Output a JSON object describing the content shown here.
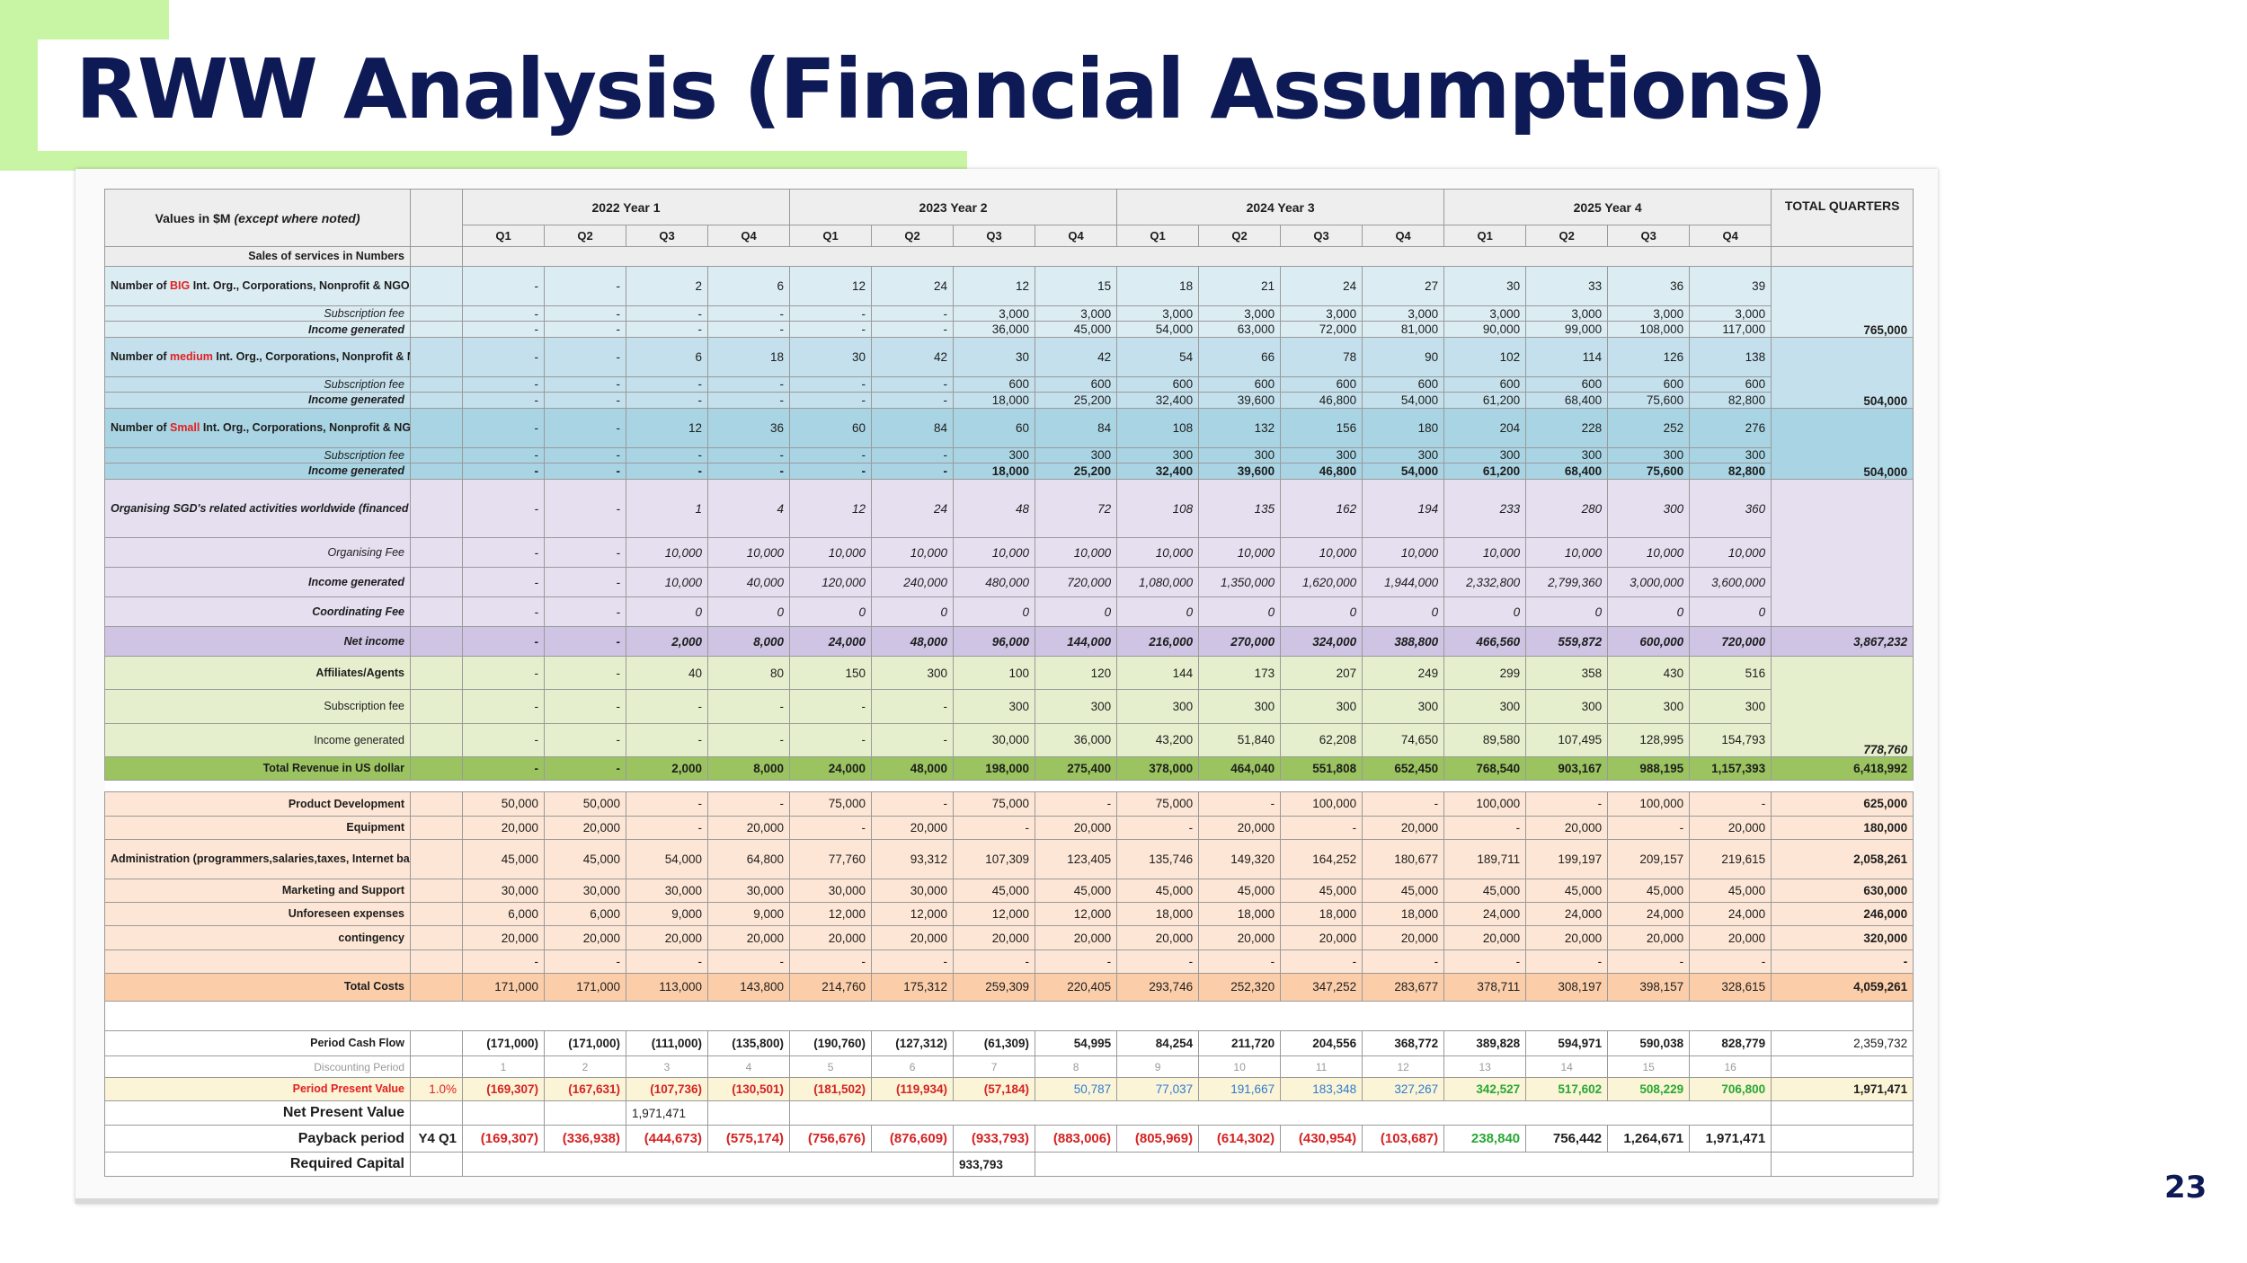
{
  "slide": {
    "title": "RWW Analysis (Financial Assumptions)",
    "page_number": "23"
  },
  "table": {
    "corner_label": "Values in $M",
    "corner_note": "(except where noted)",
    "years": [
      "2022 Year 1",
      "2023 Year 2",
      "2024 Year 3",
      "2025 Year 4"
    ],
    "quarters": [
      "Q1",
      "Q2",
      "Q3",
      "Q4",
      "Q1",
      "Q2",
      "Q3",
      "Q4",
      "Q1",
      "Q2",
      "Q3",
      "Q4",
      "Q1",
      "Q2",
      "Q3",
      "Q4"
    ],
    "total_header": "TOTAL QUARTERS",
    "section_sales": "Sales of services in Numbers",
    "big": {
      "label_pre": "Number of ",
      "label_hl": "BIG",
      "label_post": " Int. Org., Corporations, Nonprofit & NGOs Subscriptions",
      "counts": [
        "-",
        "-",
        "2",
        "6",
        "12",
        "24",
        "12",
        "15",
        "18",
        "21",
        "24",
        "27",
        "30",
        "33",
        "36",
        "39"
      ],
      "fee_label": "Subscription fee",
      "fee": [
        "-",
        "-",
        "-",
        "-",
        "-",
        "-",
        "3,000",
        "3,000",
        "3,000",
        "3,000",
        "3,000",
        "3,000",
        "3,000",
        "3,000",
        "3,000",
        "3,000"
      ],
      "income_label": "Income generated",
      "income": [
        "-",
        "-",
        "-",
        "-",
        "-",
        "-",
        "36,000",
        "45,000",
        "54,000",
        "63,000",
        "72,000",
        "81,000",
        "90,000",
        "99,000",
        "108,000",
        "117,000"
      ],
      "total": "765,000"
    },
    "medium": {
      "label_pre": "Number of ",
      "label_hl": "medium",
      "label_post": " Int. Org., Corporations, Nonprofit & NGOs Subscriptions",
      "counts": [
        "-",
        "-",
        "6",
        "18",
        "30",
        "42",
        "30",
        "42",
        "54",
        "66",
        "78",
        "90",
        "102",
        "114",
        "126",
        "138"
      ],
      "fee_label": "Subscription fee",
      "fee": [
        "-",
        "-",
        "-",
        "-",
        "-",
        "-",
        "600",
        "600",
        "600",
        "600",
        "600",
        "600",
        "600",
        "600",
        "600",
        "600"
      ],
      "income_label": "Income generated",
      "income": [
        "-",
        "-",
        "-",
        "-",
        "-",
        "-",
        "18,000",
        "25,200",
        "32,400",
        "39,600",
        "46,800",
        "54,000",
        "61,200",
        "68,400",
        "75,600",
        "82,800"
      ],
      "total": "504,000"
    },
    "small": {
      "label_pre": "Number of ",
      "label_hl": "Small",
      "label_post": " Int. Org., Corporations, Nonprofit & NGOs Subscriptions",
      "counts": [
        "-",
        "-",
        "12",
        "36",
        "60",
        "84",
        "60",
        "84",
        "108",
        "132",
        "156",
        "180",
        "204",
        "228",
        "252",
        "276"
      ],
      "fee_label": "Subscription fee",
      "fee": [
        "-",
        "-",
        "-",
        "-",
        "-",
        "-",
        "300",
        "300",
        "300",
        "300",
        "300",
        "300",
        "300",
        "300",
        "300",
        "300"
      ],
      "income_label": "Income generated",
      "income": [
        "-",
        "-",
        "-",
        "-",
        "-",
        "-",
        "18,000",
        "25,200",
        "32,400",
        "39,600",
        "46,800",
        "54,000",
        "61,200",
        "68,400",
        "75,600",
        "82,800"
      ],
      "total": "504,000"
    },
    "organising": {
      "label": "Organising SGD's related activities worldwide (financed by United nation and it's affiliates) in partnership with our franchisee",
      "counts": [
        "-",
        "-",
        "1",
        "4",
        "12",
        "24",
        "48",
        "72",
        "108",
        "135",
        "162",
        "194",
        "233",
        "280",
        "300",
        "360"
      ],
      "fee_label": "Organising Fee",
      "fee": [
        "-",
        "-",
        "10,000",
        "10,000",
        "10,000",
        "10,000",
        "10,000",
        "10,000",
        "10,000",
        "10,000",
        "10,000",
        "10,000",
        "10,000",
        "10,000",
        "10,000",
        "10,000"
      ],
      "income_label": "Income generated",
      "income": [
        "-",
        "-",
        "10,000",
        "40,000",
        "120,000",
        "240,000",
        "480,000",
        "720,000",
        "1,080,000",
        "1,350,000",
        "1,620,000",
        "1,944,000",
        "2,332,800",
        "2,799,360",
        "3,000,000",
        "3,600,000"
      ]
    },
    "coordinating": {
      "label": "Coordinating Fee",
      "values": [
        "-",
        "-",
        "0",
        "0",
        "0",
        "0",
        "0",
        "0",
        "0",
        "0",
        "0",
        "0",
        "0",
        "0",
        "0",
        "0"
      ]
    },
    "net_income": {
      "label": "Net income",
      "values": [
        "-",
        "-",
        "2,000",
        "8,000",
        "24,000",
        "48,000",
        "96,000",
        "144,000",
        "216,000",
        "270,000",
        "324,000",
        "388,800",
        "466,560",
        "559,872",
        "600,000",
        "720,000"
      ],
      "total": "3,867,232"
    },
    "affiliates": {
      "label": "Affiliates/Agents",
      "counts": [
        "-",
        "-",
        "40",
        "80",
        "150",
        "300",
        "100",
        "120",
        "144",
        "173",
        "207",
        "249",
        "299",
        "358",
        "430",
        "516"
      ],
      "fee_label": "Subscription fee",
      "fee": [
        "-",
        "-",
        "-",
        "-",
        "-",
        "-",
        "300",
        "300",
        "300",
        "300",
        "300",
        "300",
        "300",
        "300",
        "300",
        "300"
      ],
      "income_label": "Income generated",
      "income": [
        "-",
        "-",
        "-",
        "-",
        "-",
        "-",
        "30,000",
        "36,000",
        "43,200",
        "51,840",
        "62,208",
        "74,650",
        "89,580",
        "107,495",
        "128,995",
        "154,793"
      ],
      "total": "778,760"
    },
    "total_revenue": {
      "label": "Total Revenue in US dollar",
      "values": [
        "-",
        "-",
        "2,000",
        "8,000",
        "24,000",
        "48,000",
        "198,000",
        "275,400",
        "378,000",
        "464,040",
        "551,808",
        "652,450",
        "768,540",
        "903,167",
        "988,195",
        "1,157,393"
      ],
      "total": "6,418,992"
    },
    "costs": [
      {
        "label": "Product Development",
        "values": [
          "50,000",
          "50,000",
          "-",
          "-",
          "75,000",
          "-",
          "75,000",
          "-",
          "75,000",
          "-",
          "100,000",
          "-",
          "100,000",
          "-",
          "100,000",
          "-"
        ],
        "total": "625,000"
      },
      {
        "label": "Equipment",
        "values": [
          "20,000",
          "20,000",
          "-",
          "20,000",
          "-",
          "20,000",
          "-",
          "20,000",
          "-",
          "20,000",
          "-",
          "20,000",
          "-",
          "20,000",
          "-",
          "20,000"
        ],
        "total": "180,000"
      },
      {
        "label": "Administration (programmers,salaries,taxes, Internet bandwidth)",
        "values": [
          "45,000",
          "45,000",
          "54,000",
          "64,800",
          "77,760",
          "93,312",
          "107,309",
          "123,405",
          "135,746",
          "149,320",
          "164,252",
          "180,677",
          "189,711",
          "199,197",
          "209,157",
          "219,615"
        ],
        "total": "2,058,261"
      },
      {
        "label": "Marketing and Support",
        "values": [
          "30,000",
          "30,000",
          "30,000",
          "30,000",
          "30,000",
          "30,000",
          "45,000",
          "45,000",
          "45,000",
          "45,000",
          "45,000",
          "45,000",
          "45,000",
          "45,000",
          "45,000",
          "45,000"
        ],
        "total": "630,000"
      },
      {
        "label": "Unforeseen expenses",
        "values": [
          "6,000",
          "6,000",
          "9,000",
          "9,000",
          "12,000",
          "12,000",
          "12,000",
          "12,000",
          "18,000",
          "18,000",
          "18,000",
          "18,000",
          "24,000",
          "24,000",
          "24,000",
          "24,000"
        ],
        "total": "246,000"
      },
      {
        "label": "contingency",
        "values": [
          "20,000",
          "20,000",
          "20,000",
          "20,000",
          "20,000",
          "20,000",
          "20,000",
          "20,000",
          "20,000",
          "20,000",
          "20,000",
          "20,000",
          "20,000",
          "20,000",
          "20,000",
          "20,000"
        ],
        "total": "320,000"
      },
      {
        "label": "",
        "values": [
          "-",
          "-",
          "-",
          "-",
          "-",
          "-",
          "-",
          "-",
          "-",
          "-",
          "-",
          "-",
          "-",
          "-",
          "-",
          "-"
        ],
        "total": "-"
      }
    ],
    "total_costs": {
      "label": "Total Costs",
      "values": [
        "171,000",
        "171,000",
        "113,000",
        "143,800",
        "214,760",
        "175,312",
        "259,309",
        "220,405",
        "293,746",
        "252,320",
        "347,252",
        "283,677",
        "378,711",
        "308,197",
        "398,157",
        "328,615"
      ],
      "total": "4,059,261"
    },
    "cash_flow": {
      "label": "Period Cash Flow",
      "values": [
        "(171,000)",
        "(171,000)",
        "(111,000)",
        "(135,800)",
        "(190,760)",
        "(127,312)",
        "(61,309)",
        "54,995",
        "84,254",
        "211,720",
        "204,556",
        "368,772",
        "389,828",
        "594,971",
        "590,038",
        "828,779"
      ],
      "total": "2,359,732"
    },
    "discounting": {
      "label": "Discounting Period",
      "values": [
        "1",
        "2",
        "3",
        "4",
        "5",
        "6",
        "7",
        "8",
        "9",
        "10",
        "11",
        "12",
        "13",
        "14",
        "15",
        "16"
      ]
    },
    "ppv": {
      "label": "Period Present Value",
      "rate": "1.0%",
      "values": [
        "(169,307)",
        "(167,631)",
        "(107,736)",
        "(130,501)",
        "(181,502)",
        "(119,934)",
        "(57,184)",
        "50,787",
        "77,037",
        "191,667",
        "183,348",
        "327,267",
        "342,527",
        "517,602",
        "508,229",
        "706,800"
      ],
      "total": "1,971,471"
    },
    "npv": {
      "label": "Net Present Value",
      "value": "1,971,471"
    },
    "payback": {
      "label": "Payback period",
      "marker": "Y4 Q1",
      "values": [
        "(169,307)",
        "(336,938)",
        "(444,673)",
        "(575,174)",
        "(756,676)",
        "(876,609)",
        "(933,793)",
        "(883,006)",
        "(805,969)",
        "(614,302)",
        "(430,954)",
        "(103,687)",
        "238,840",
        "756,442",
        "1,264,671",
        "1,971,471"
      ]
    },
    "required_capital": {
      "label": "Required Capital",
      "value": "933,793"
    }
  },
  "colors": {
    "title": "#0e1a55",
    "accent_green": "#c8f5a4",
    "negative": "#d42323",
    "positive_blue": "#2e7bd1",
    "positive_green": "#27a834"
  }
}
